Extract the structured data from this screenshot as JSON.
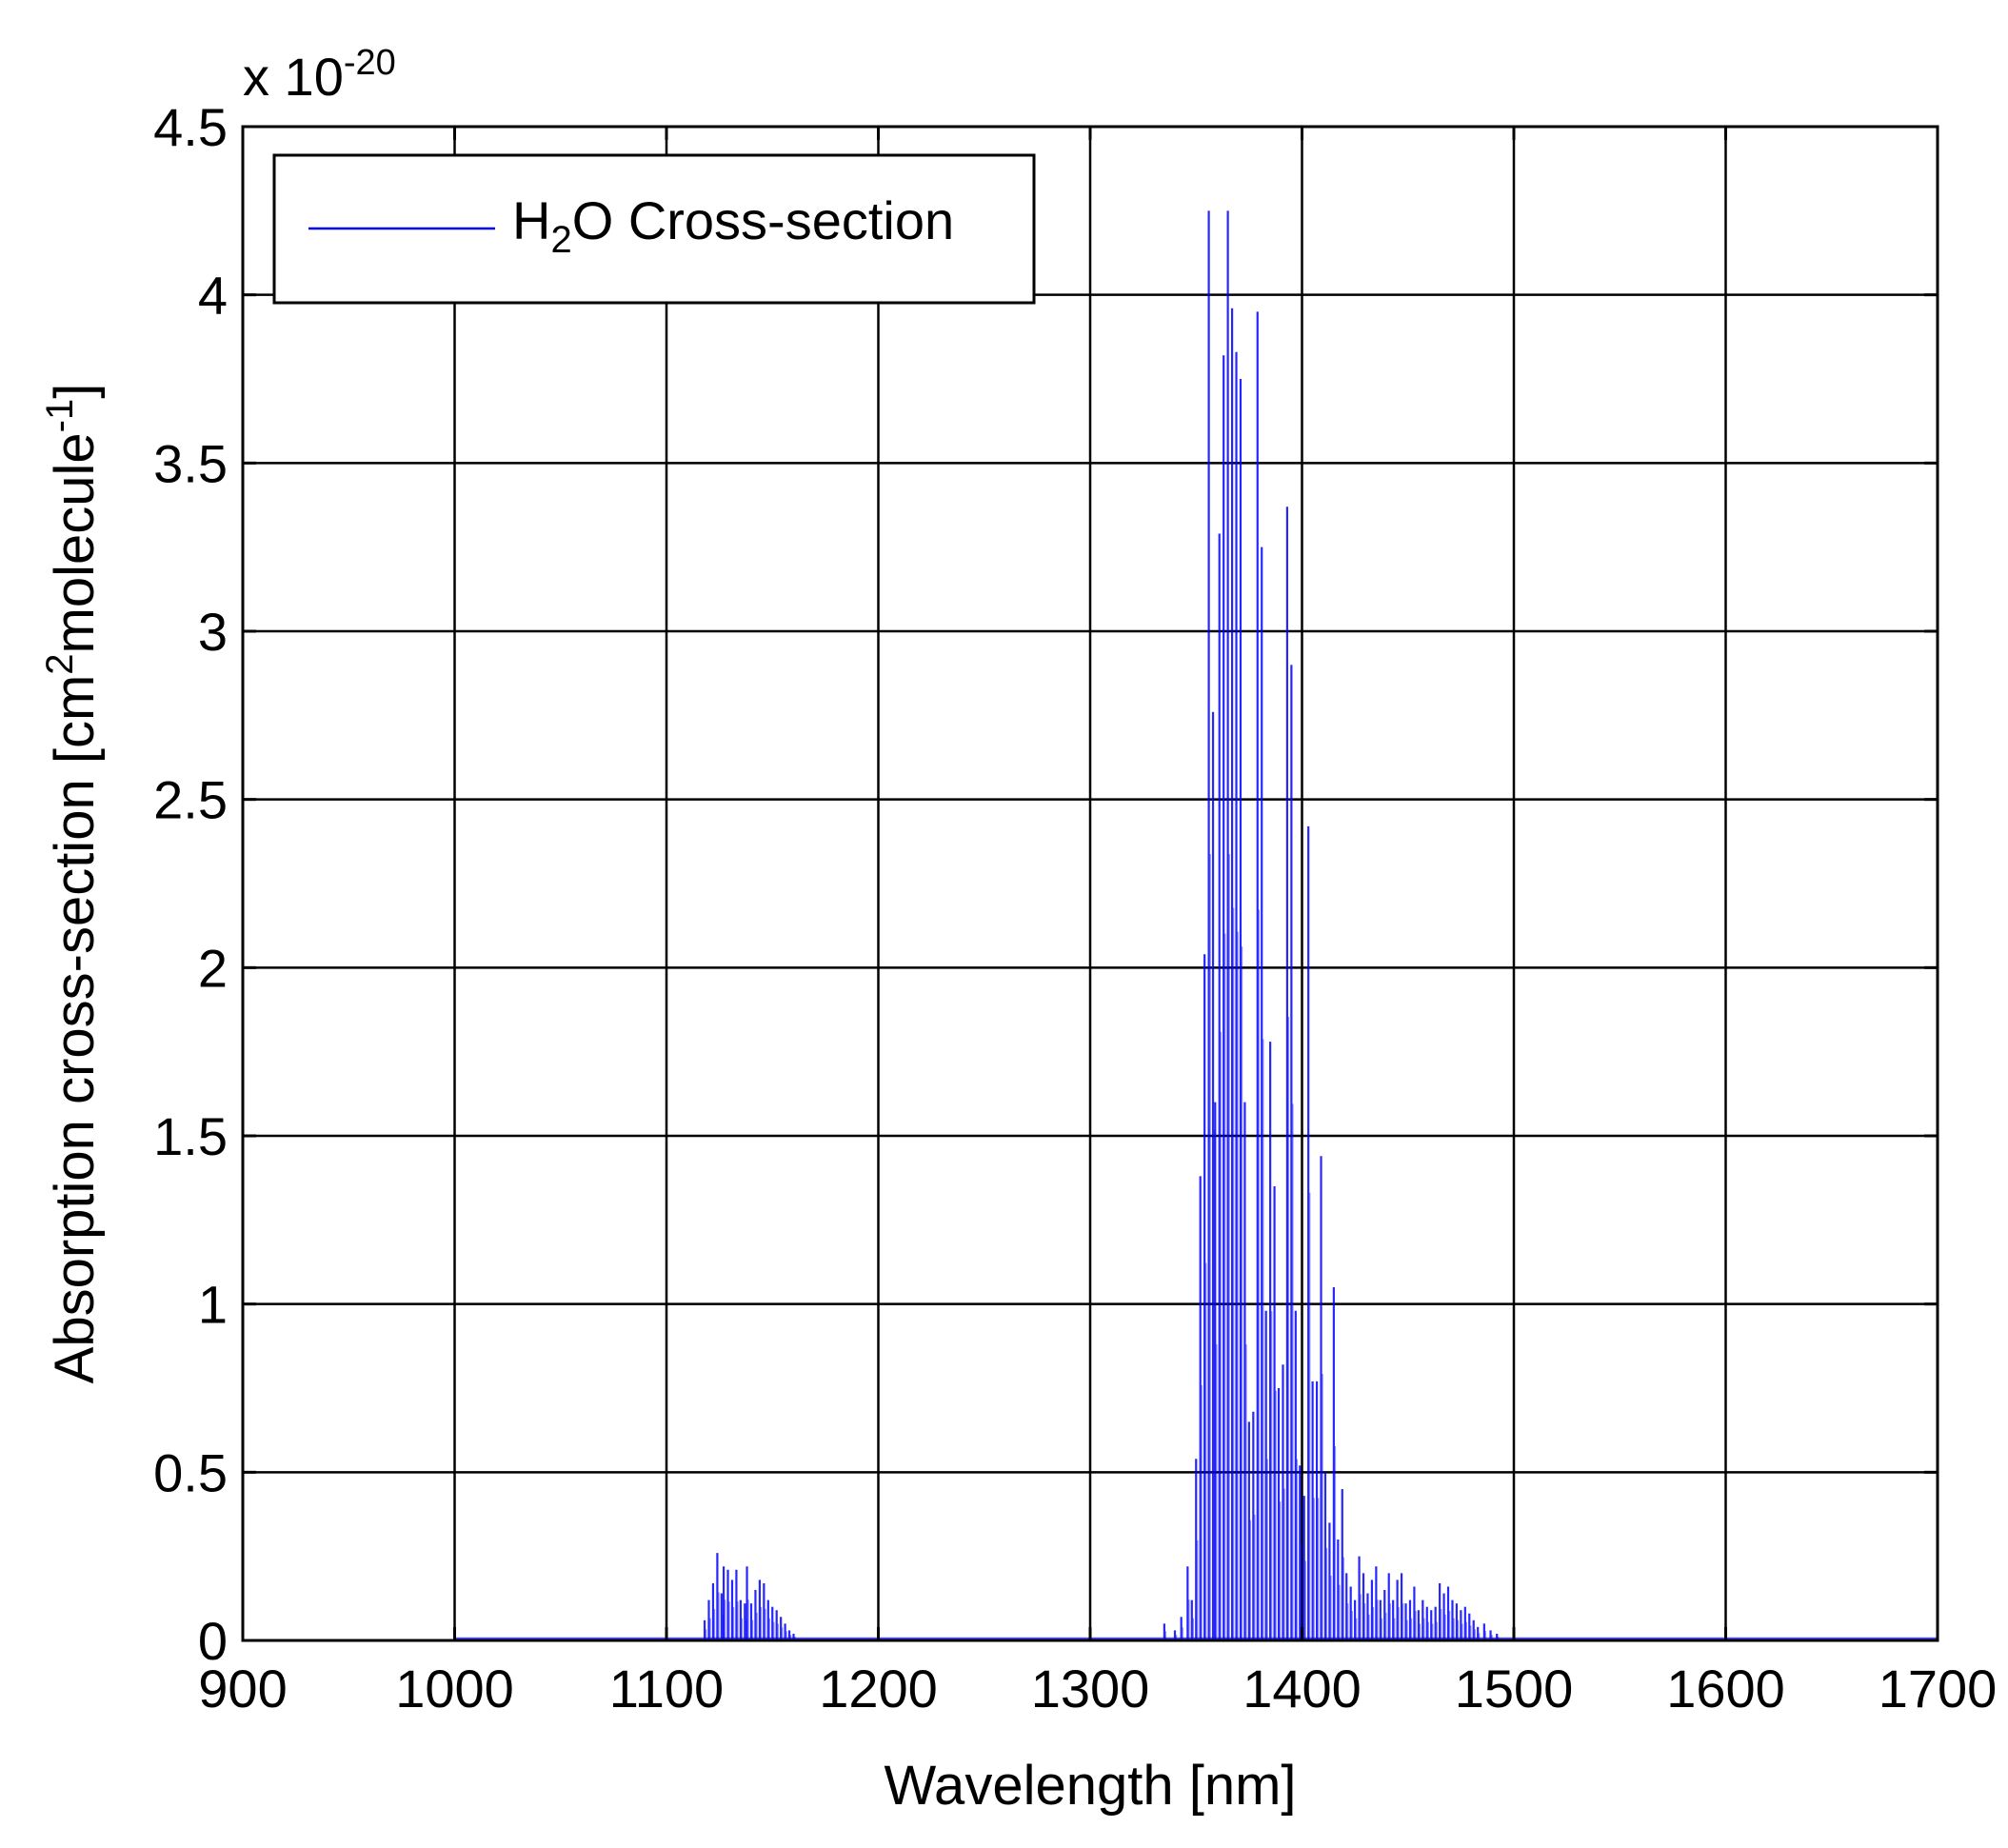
{
  "chart_data": {
    "type": "line",
    "title": "",
    "xlabel": "Wavelength [nm]",
    "ylabel": {
      "prefix": "Absorption cross-section [cm",
      "sup1": "2",
      "mid": "molecule",
      "sup2": "-1",
      "suffix": "]"
    },
    "exponent": {
      "prefix": "x 10",
      "power": "-20"
    },
    "xlim": [
      900,
      1700
    ],
    "ylim": [
      0,
      4.5
    ],
    "xticks": [
      900,
      1000,
      1100,
      1200,
      1300,
      1400,
      1500,
      1600,
      1700
    ],
    "xtick_labels": [
      "900",
      "1000",
      "1100",
      "1200",
      "1300",
      "1400",
      "1500",
      "1600",
      "1700"
    ],
    "yticks": [
      0,
      0.5,
      1,
      1.5,
      2,
      2.5,
      3,
      3.5,
      4,
      4.5
    ],
    "ytick_labels": [
      "0",
      "0.5",
      "1",
      "1.5",
      "2",
      "2.5",
      "3",
      "3.5",
      "4",
      "4.5"
    ],
    "grid": true,
    "legend_position": "top-left",
    "series": [
      {
        "name": "H₂O Cross-section",
        "legend_label": {
          "prefix": "H",
          "sub": "2",
          "suffix": "O Cross-section"
        },
        "color": "#0000ff",
        "x_range": [
          1000,
          1700
        ],
        "baseline": 0.005,
        "peaks": [
          [
            1118,
            0.06
          ],
          [
            1120,
            0.12
          ],
          [
            1122,
            0.17
          ],
          [
            1124,
            0.26
          ],
          [
            1126,
            0.14
          ],
          [
            1127,
            0.22
          ],
          [
            1129,
            0.21
          ],
          [
            1131,
            0.18
          ],
          [
            1133,
            0.21
          ],
          [
            1135,
            0.12
          ],
          [
            1137,
            0.11
          ],
          [
            1138,
            0.22
          ],
          [
            1140,
            0.11
          ],
          [
            1142,
            0.15
          ],
          [
            1144,
            0.18
          ],
          [
            1146,
            0.17
          ],
          [
            1148,
            0.12
          ],
          [
            1150,
            0.1
          ],
          [
            1152,
            0.09
          ],
          [
            1154,
            0.07
          ],
          [
            1156,
            0.05
          ],
          [
            1158,
            0.03
          ],
          [
            1160,
            0.02
          ],
          [
            1335,
            0.05
          ],
          [
            1340,
            0.03
          ],
          [
            1343,
            0.07
          ],
          [
            1346,
            0.22
          ],
          [
            1348,
            0.12
          ],
          [
            1350,
            0.54
          ],
          [
            1352,
            1.38
          ],
          [
            1354,
            2.04
          ],
          [
            1356,
            4.25
          ],
          [
            1358,
            2.76
          ],
          [
            1359,
            1.6
          ],
          [
            1361,
            3.29
          ],
          [
            1363,
            3.82
          ],
          [
            1365,
            4.25
          ],
          [
            1367,
            3.96
          ],
          [
            1369,
            3.83
          ],
          [
            1371,
            3.75
          ],
          [
            1373,
            1.6
          ],
          [
            1375,
            0.65
          ],
          [
            1377,
            0.68
          ],
          [
            1379,
            3.95
          ],
          [
            1381,
            3.25
          ],
          [
            1383,
            0.98
          ],
          [
            1385,
            1.78
          ],
          [
            1387,
            1.35
          ],
          [
            1389,
            0.75
          ],
          [
            1391,
            0.82
          ],
          [
            1393,
            3.37
          ],
          [
            1395,
            2.9
          ],
          [
            1397,
            0.98
          ],
          [
            1399,
            0.52
          ],
          [
            1401,
            0.43
          ],
          [
            1403,
            2.42
          ],
          [
            1405,
            0.77
          ],
          [
            1407,
            0.77
          ],
          [
            1409,
            1.44
          ],
          [
            1411,
            0.5
          ],
          [
            1413,
            0.35
          ],
          [
            1415,
            1.05
          ],
          [
            1417,
            0.3
          ],
          [
            1419,
            0.45
          ],
          [
            1421,
            0.2
          ],
          [
            1423,
            0.16
          ],
          [
            1425,
            0.12
          ],
          [
            1427,
            0.25
          ],
          [
            1429,
            0.2
          ],
          [
            1431,
            0.14
          ],
          [
            1433,
            0.18
          ],
          [
            1435,
            0.22
          ],
          [
            1437,
            0.12
          ],
          [
            1439,
            0.15
          ],
          [
            1441,
            0.2
          ],
          [
            1443,
            0.12
          ],
          [
            1445,
            0.18
          ],
          [
            1447,
            0.2
          ],
          [
            1449,
            0.11
          ],
          [
            1451,
            0.12
          ],
          [
            1453,
            0.16
          ],
          [
            1455,
            0.09
          ],
          [
            1457,
            0.12
          ],
          [
            1459,
            0.1
          ],
          [
            1461,
            0.09
          ],
          [
            1463,
            0.1
          ],
          [
            1465,
            0.17
          ],
          [
            1467,
            0.14
          ],
          [
            1469,
            0.16
          ],
          [
            1471,
            0.12
          ],
          [
            1473,
            0.11
          ],
          [
            1475,
            0.09
          ],
          [
            1477,
            0.1
          ],
          [
            1479,
            0.08
          ],
          [
            1481,
            0.06
          ],
          [
            1483,
            0.04
          ],
          [
            1486,
            0.05
          ],
          [
            1489,
            0.03
          ],
          [
            1492,
            0.02
          ]
        ]
      }
    ]
  }
}
